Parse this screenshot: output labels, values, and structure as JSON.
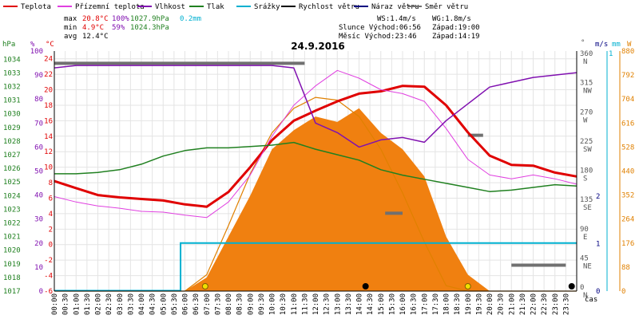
{
  "chart_data": {
    "type": "line",
    "title": "24.9.2016",
    "legend": [
      {
        "name": "Teplota",
        "color": "#e00000"
      },
      {
        "name": "Přízemní teplota",
        "color": "#e040e0"
      },
      {
        "name": "Vlhkost",
        "color": "#8010b0"
      },
      {
        "name": "Tlak",
        "color": "#208020"
      },
      {
        "name": "Srážky",
        "color": "#00b0d0"
      },
      {
        "name": "Rychlost větru",
        "color": "#000000"
      },
      {
        "name": "Náraz větru",
        "color": "#000080"
      },
      {
        "name": "Směr větru",
        "color": "#707070"
      }
    ],
    "stats": {
      "max_label": "max",
      "max_temp": "20.8°C",
      "max_hum": "100%",
      "max_press": "1027.9hPa",
      "max_rain": "0.2mm",
      "min_label": "min",
      "min_temp": "4.9°C",
      "min_hum": "59%",
      "min_press": "1024.3hPa",
      "avg_label": "avg",
      "avg_temp": "12.4°C"
    },
    "info": {
      "ws": "WS:1.4m/s",
      "wg": "WG:1.8m/s",
      "slunce": "Slunce Východ:06:56",
      "slunce_zapad": "Západ:19:00",
      "mesic": "Měsíc  Východ:23:46",
      "mesic_zapad": "Západ:14:19"
    },
    "axes": {
      "hpa_label": "hPa",
      "pct_label": "%",
      "c_label": "°C",
      "deg_label": "°",
      "ms_label": "m/s",
      "mm_label": "mm",
      "w_label": "W",
      "hpa_ticks": [
        "1034",
        "1033",
        "1032",
        "1031",
        "1030",
        "1029",
        "1028",
        "1027",
        "1026",
        "1025",
        "1024",
        "1023",
        "1022",
        "1021",
        "1020",
        "1019",
        "1018",
        "1017"
      ],
      "pct_ticks": [
        "100",
        "90",
        "80",
        "70",
        "60",
        "50",
        "40",
        "30",
        "20",
        "10",
        "0"
      ],
      "c_ticks": [
        "24",
        "22",
        "20",
        "18",
        "16",
        "14",
        "12",
        "10",
        "8",
        "6",
        "4",
        "2",
        "0",
        "-2",
        "-4",
        "-6"
      ],
      "dir_ticks": [
        "360\nN",
        "315\nNW",
        "270\nW",
        "225\nSW",
        "180\nS",
        "135\nSE",
        "90\nE",
        "45\nNE",
        "0\nN"
      ],
      "ms_ticks": [
        "2",
        "1",
        "0"
      ],
      "mm_ticks": [
        "1"
      ],
      "w_ticks": [
        "880",
        "792",
        "704",
        "616",
        "528",
        "440",
        "352",
        "264",
        "176",
        "88",
        "0"
      ],
      "time_ticks": [
        "00:00",
        "00:30",
        "01:00",
        "01:30",
        "02:00",
        "02:30",
        "03:00",
        "03:30",
        "04:00",
        "04:30",
        "05:00",
        "05:30",
        "06:00",
        "06:30",
        "07:00",
        "07:30",
        "08:00",
        "08:30",
        "09:00",
        "09:30",
        "10:00",
        "10:30",
        "11:00",
        "11:30",
        "12:00",
        "12:30",
        "13:00",
        "13:30",
        "14:00",
        "14:30",
        "15:00",
        "15:30",
        "16:00",
        "16:30",
        "17:00",
        "17:30",
        "18:00",
        "18:30",
        "19:00",
        "19:30",
        "20:00",
        "20:30",
        "21:00",
        "21:30",
        "22:00",
        "22:30",
        "23:00",
        "23:30"
      ],
      "time_unit": "čas",
      "temp_range": [
        -6,
        25
      ],
      "hum_range": [
        0,
        100
      ],
      "press_range": [
        1017,
        1034.6
      ]
    },
    "x_hours": [
      0,
      1,
      2,
      3,
      4,
      5,
      6,
      7,
      8,
      9,
      10,
      11,
      12,
      13,
      14,
      15,
      16,
      17,
      18,
      19,
      20,
      21,
      22,
      23,
      24
    ],
    "series": [
      {
        "name": "Teplota",
        "values": [
          8.2,
          7.3,
          6.4,
          6.1,
          5.9,
          5.7,
          5.2,
          4.9,
          6.8,
          10.0,
          13.5,
          16.0,
          17.3,
          18.5,
          19.5,
          19.8,
          20.5,
          20.4,
          18.0,
          14.5,
          11.5,
          10.3,
          10.2,
          9.3,
          8.8
        ]
      },
      {
        "name": "Přízemní teplota",
        "values": [
          6.2,
          5.5,
          5.0,
          4.7,
          4.3,
          4.2,
          3.8,
          3.5,
          5.5,
          9.0,
          14.0,
          18.0,
          20.5,
          22.5,
          21.5,
          20.0,
          19.5,
          18.5,
          15.0,
          11.0,
          9.0,
          8.5,
          9.0,
          8.5,
          7.8
        ]
      },
      {
        "name": "Vlhkost",
        "values": [
          93,
          94,
          94,
          94,
          94,
          94,
          94,
          94,
          94,
          94,
          94,
          93,
          70,
          66,
          60,
          63,
          64,
          62,
          71,
          78,
          85,
          87,
          89,
          90,
          91
        ]
      },
      {
        "name": "Tlak",
        "values": [
          1025.6,
          1025.6,
          1025.7,
          1025.9,
          1026.3,
          1026.9,
          1027.3,
          1027.5,
          1027.5,
          1027.6,
          1027.7,
          1027.9,
          1027.4,
          1027.0,
          1026.6,
          1025.9,
          1025.5,
          1025.2,
          1024.9,
          1024.6,
          1024.3,
          1024.4,
          1024.6,
          1024.8,
          1024.7
        ]
      }
    ],
    "solar_W": [
      0,
      0,
      0,
      0,
      0,
      0,
      0,
      50,
      200,
      350,
      520,
      590,
      640,
      620,
      670,
      580,
      520,
      420,
      200,
      60,
      0,
      0,
      0,
      0,
      0
    ],
    "solar_theoretical_W": [
      0,
      0,
      0,
      0,
      0,
      0,
      0,
      60,
      240,
      430,
      580,
      670,
      710,
      700,
      640,
      520,
      360,
      180,
      20,
      0,
      0,
      0,
      0,
      0,
      0
    ],
    "rain_mm": {
      "cumulative": 0.2,
      "start_time": "05:48"
    },
    "wind_dir_deg": {
      "segments": [
        [
          0,
          11.5,
          351
        ],
        [
          19.0,
          19.7,
          240
        ],
        [
          21.0,
          23.5,
          40
        ],
        [
          15.2,
          16.0,
          120
        ]
      ]
    },
    "sun_markers": [
      "06:56",
      "19:00"
    ],
    "moon_markers": [
      "14:19",
      "23:46"
    ]
  }
}
